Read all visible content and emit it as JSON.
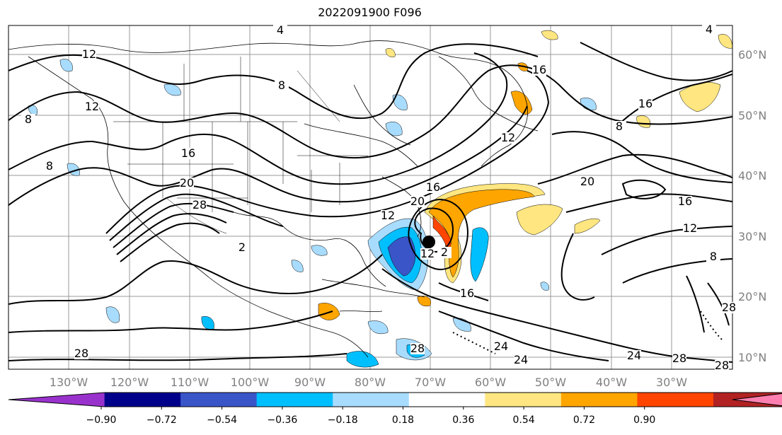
{
  "title": "2022091900 F096",
  "map": {
    "lon_ticks": [
      "130°W",
      "120°W",
      "110°W",
      "100°W",
      "90°W",
      "80°W",
      "70°W",
      "60°W",
      "50°W",
      "40°W",
      "30°W"
    ],
    "lat_ticks": [
      "60°N",
      "50°N",
      "40°N",
      "30°N",
      "20°N",
      "10°N"
    ],
    "contour_labels": [
      "4",
      "4",
      "2",
      "2",
      "8",
      "8",
      "8",
      "8",
      "16",
      "16",
      "16",
      "16",
      "16",
      "12",
      "12",
      "12",
      "12",
      "8",
      "20",
      "20",
      "28",
      "28",
      "28",
      "28",
      "24",
      "24",
      "20",
      "16",
      "12",
      "12",
      "24",
      "28",
      "28"
    ],
    "storm_marker": "hurricane-center"
  },
  "colorbar": {
    "ticks": [
      "−0.90",
      "−0.72",
      "−0.54",
      "−0.36",
      "−0.18",
      "0.18",
      "0.36",
      "0.54",
      "0.72",
      "0.90"
    ],
    "colors": [
      "#9932cc",
      "#00008b",
      "#3a55c8",
      "#00bfff",
      "#a8dcff",
      "#ffffff",
      "#ffe680",
      "#ffa500",
      "#ff4500",
      "#b22222",
      "#ff80b0"
    ],
    "extend": "both"
  }
}
